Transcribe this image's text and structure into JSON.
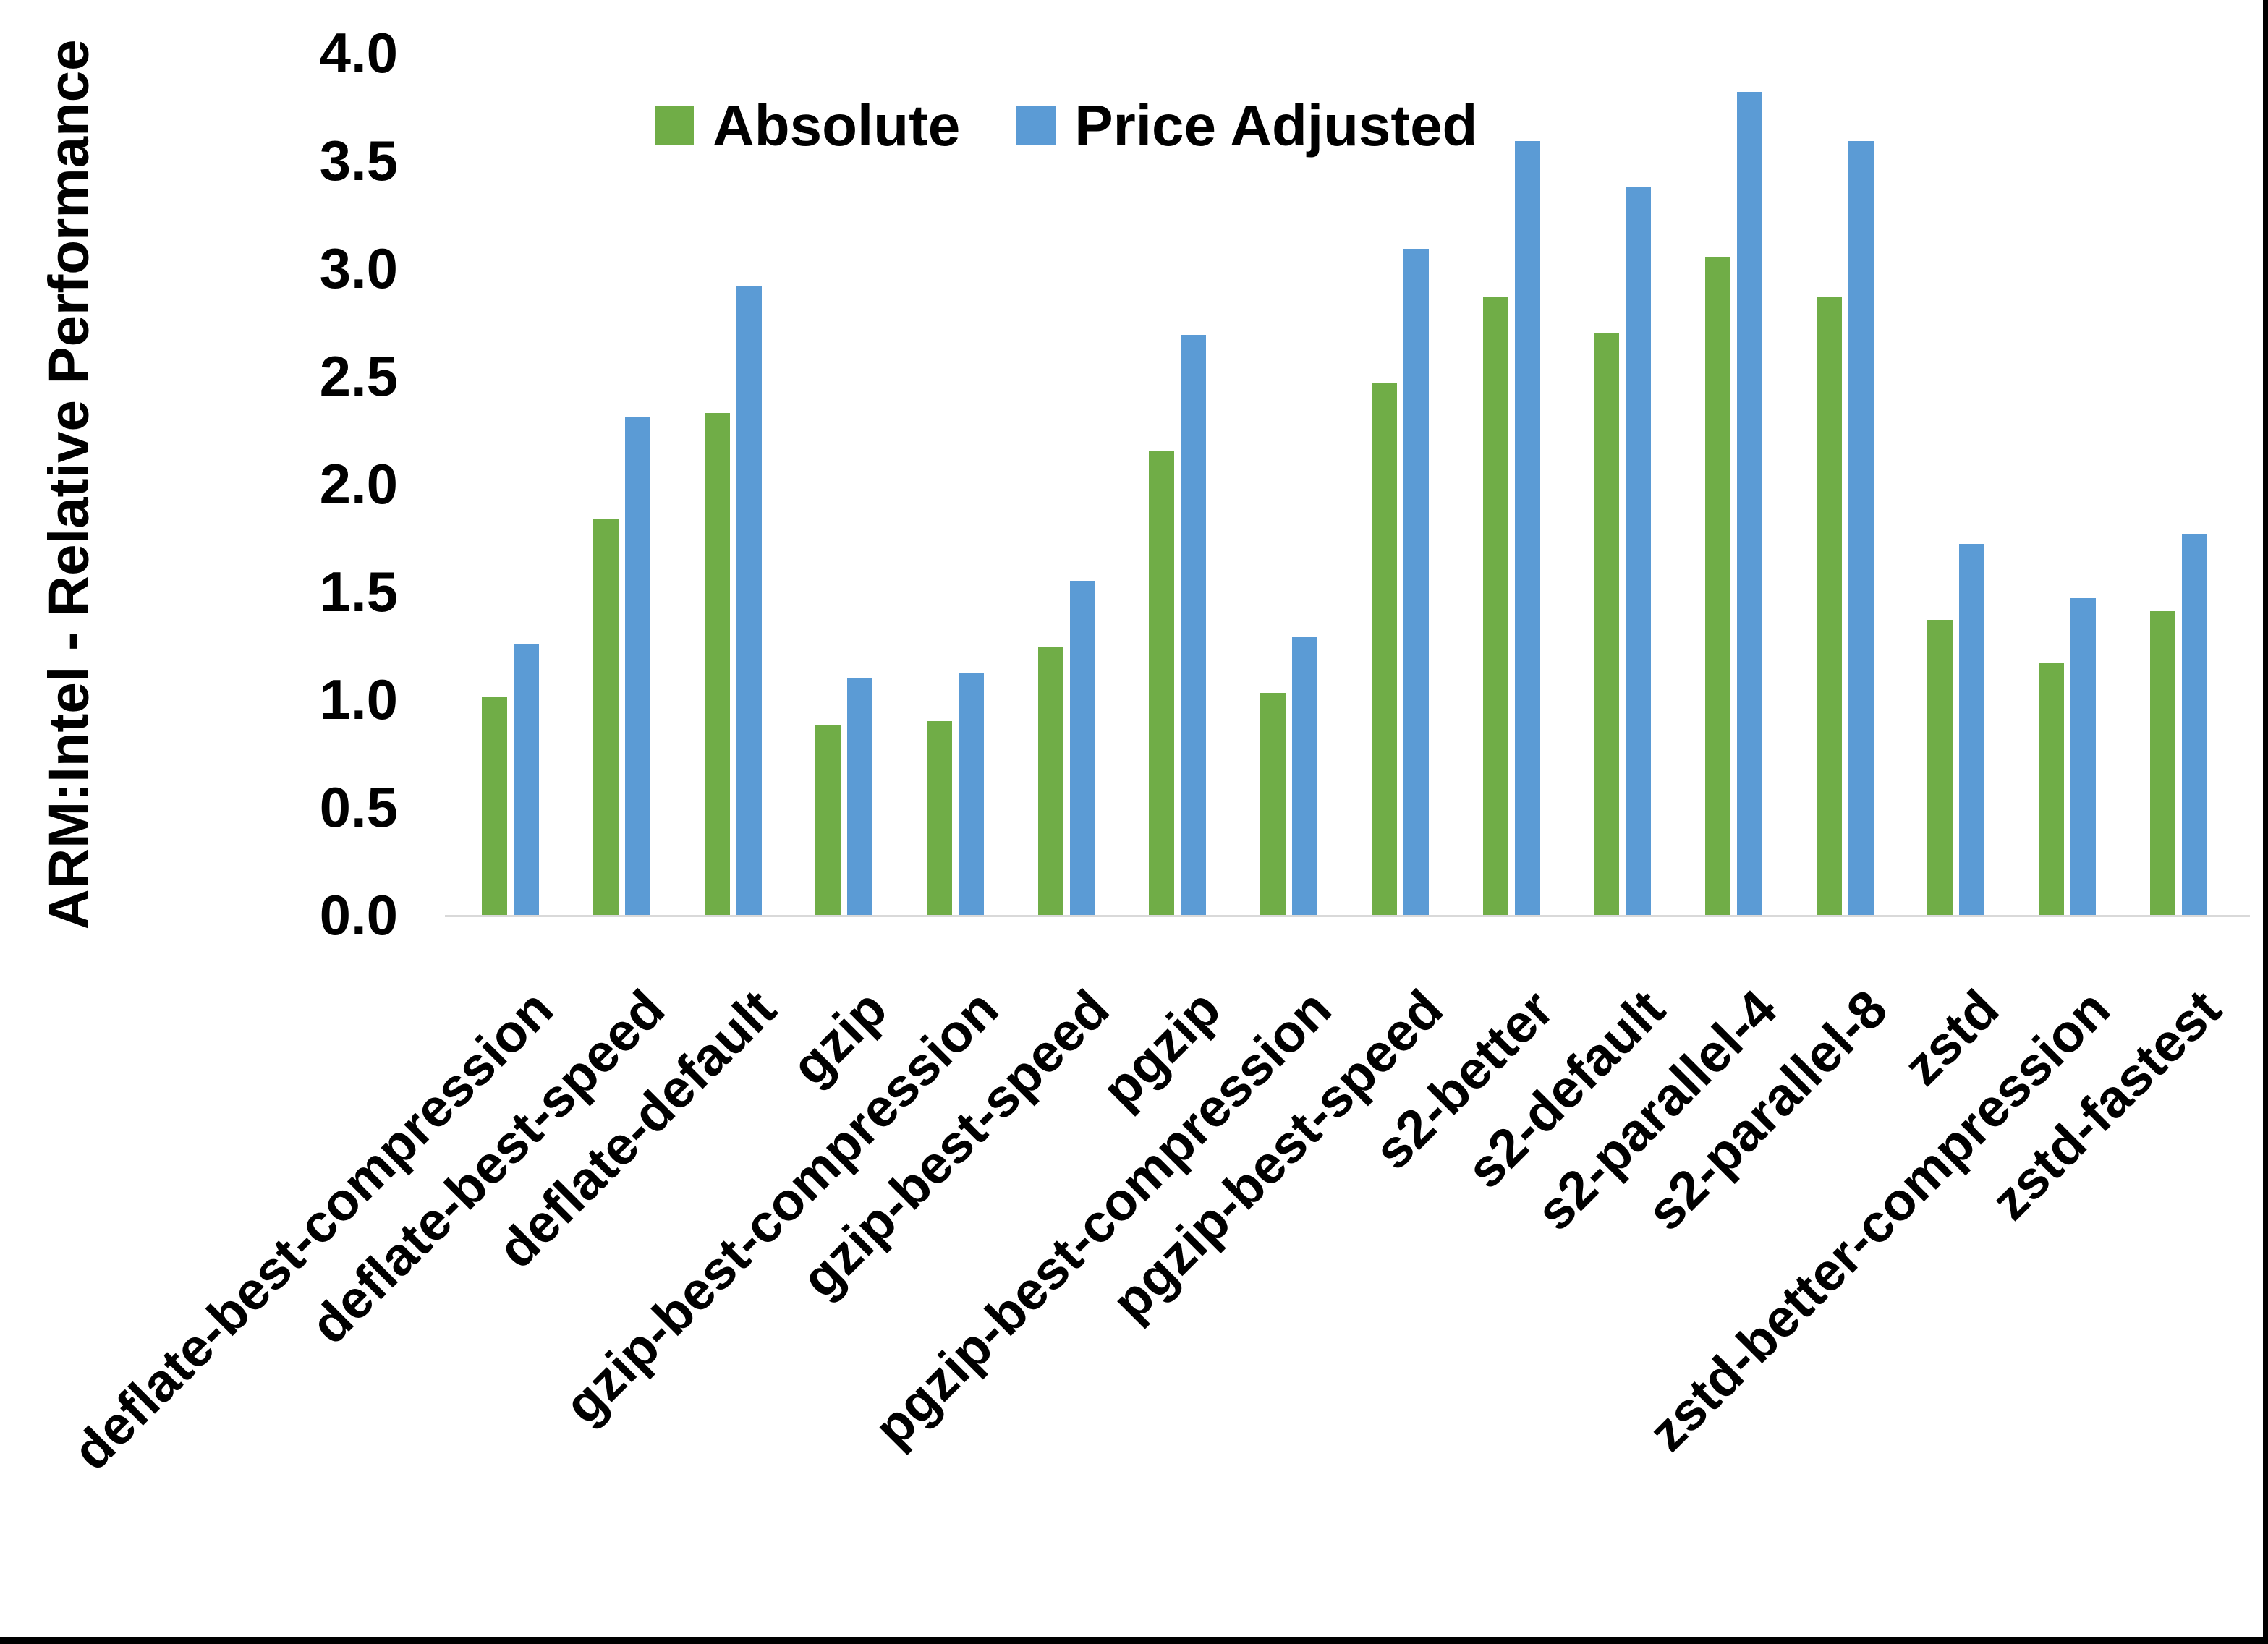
{
  "chart_data": {
    "type": "bar",
    "title": "",
    "ylabel": "ARM:Intel - Relative Performance",
    "xlabel": "",
    "ylim": [
      0.0,
      4.0
    ],
    "ytick_step": 0.5,
    "ytick_labels": [
      "0.0",
      "0.5",
      "1.0",
      "1.5",
      "2.0",
      "2.5",
      "3.0",
      "3.5",
      "4.0"
    ],
    "grid": false,
    "legend_position": "top-center",
    "x_label_rotation_deg": 45,
    "categories": [
      "deflate-best-compression",
      "deflate-best-speed",
      "deflate-default",
      "gzip",
      "gzip-best-compression",
      "gzip-best-speed",
      "pgzip",
      "pgzip-best-compression",
      "pgzip-best-speed",
      "s2-better",
      "s2-default",
      "s2-parallel-4",
      "s2-parallel-8",
      "zstd",
      "zstd-better-compression",
      "zstd-fastest"
    ],
    "series": [
      {
        "name": "Absolute",
        "color": "#70AD47",
        "values": [
          1.01,
          1.84,
          2.33,
          0.88,
          0.9,
          1.24,
          2.15,
          1.03,
          2.47,
          2.87,
          2.7,
          3.05,
          2.87,
          1.37,
          1.17,
          1.41
        ]
      },
      {
        "name": "Price Adjusted",
        "color": "#5B9BD5",
        "values": [
          1.26,
          2.31,
          2.92,
          1.1,
          1.12,
          1.55,
          2.69,
          1.29,
          3.09,
          3.59,
          3.38,
          3.82,
          3.59,
          1.72,
          1.47,
          1.77
        ]
      }
    ]
  },
  "colors": {
    "axis_line": "#D9D9D9",
    "text": "#000000",
    "frame_border": "#000000",
    "background": "#FFFFFF"
  }
}
